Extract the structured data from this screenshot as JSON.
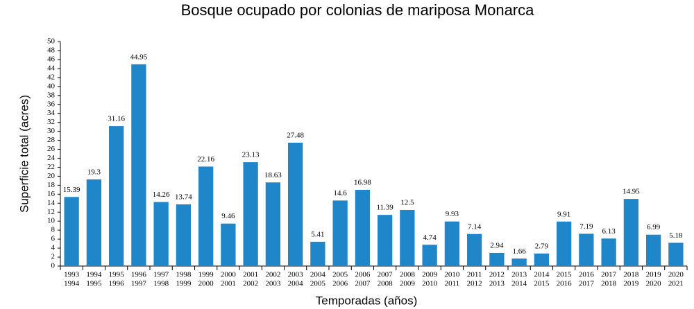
{
  "chart_data": {
    "type": "bar",
    "title": "Bosque ocupado por colonias de mariposa Monarca",
    "x_label": "Temporadas (años)",
    "y_label": "Superficie total (acres)",
    "categories": [
      [
        "1993",
        "1994"
      ],
      [
        "1994",
        "1995"
      ],
      [
        "1995",
        "1996"
      ],
      [
        "1996",
        "1997"
      ],
      [
        "1997",
        "1998"
      ],
      [
        "1998",
        "1999"
      ],
      [
        "1999",
        "2000"
      ],
      [
        "2000",
        "2001"
      ],
      [
        "2001",
        "2002"
      ],
      [
        "2002",
        "2003"
      ],
      [
        "2003",
        "2004"
      ],
      [
        "2004",
        "2005"
      ],
      [
        "2005",
        "2006"
      ],
      [
        "2006",
        "2007"
      ],
      [
        "2007",
        "2008"
      ],
      [
        "2008",
        "2009"
      ],
      [
        "2009",
        "2010"
      ],
      [
        "2010",
        "2011"
      ],
      [
        "2011",
        "2012"
      ],
      [
        "2012",
        "2013"
      ],
      [
        "2013",
        "2014"
      ],
      [
        "2014",
        "2015"
      ],
      [
        "2015",
        "2016"
      ],
      [
        "2016",
        "2017"
      ],
      [
        "2017",
        "2018"
      ],
      [
        "2018",
        "2019"
      ],
      [
        "2019",
        "2020"
      ],
      [
        "2020",
        "2021"
      ]
    ],
    "values": [
      15.39,
      19.3,
      31.16,
      44.95,
      14.26,
      13.74,
      22.16,
      9.46,
      23.13,
      18.63,
      27.48,
      5.41,
      14.6,
      16.98,
      11.39,
      12.5,
      4.74,
      9.93,
      7.14,
      2.94,
      1.66,
      2.79,
      9.91,
      7.19,
      6.13,
      14.95,
      6.99,
      5.18
    ],
    "color": "#1f86c9",
    "ylim": [
      0,
      50
    ],
    "yticks": [
      0,
      2,
      4,
      6,
      8,
      10,
      12,
      14,
      16,
      18,
      20,
      22,
      24,
      26,
      28,
      30,
      32,
      34,
      36,
      38,
      40,
      42,
      44,
      46,
      48,
      50
    ],
    "grid": false
  }
}
